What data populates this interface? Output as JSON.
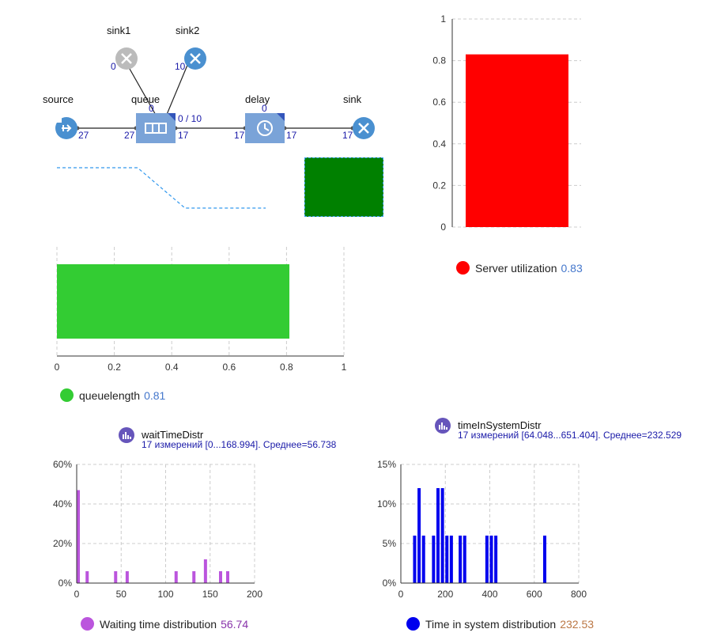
{
  "diagram": {
    "nodes": {
      "source": {
        "label": "source",
        "count_out": "27"
      },
      "queue": {
        "label": "queue",
        "count_in": "27",
        "count_out": "17",
        "count_top": "0",
        "capacity": "0 / 10"
      },
      "delay": {
        "label": "delay",
        "count_in": "17",
        "count_out": "17",
        "count_top": "0"
      },
      "sink": {
        "label": "sink",
        "count_in": "17"
      },
      "sink1": {
        "label": "sink1",
        "count": "0"
      },
      "sink2": {
        "label": "sink2",
        "count": "10"
      }
    },
    "indicator_color": "#008000"
  },
  "queue_chart": {
    "legend": "queuelength",
    "value_text": "0.81",
    "color": "#33cc33"
  },
  "server_chart": {
    "legend": "Server utilization",
    "value_text": "0.83",
    "color": "#ff0000"
  },
  "wait_stats": {
    "title": "waitTimeDistr",
    "subtitle": "17 измерений [0...168.994]. Среднее=56.738",
    "legend": "Waiting time distribution",
    "value_text": "56.74",
    "color": "#bb55dd",
    "value_color": "#8833aa"
  },
  "system_stats": {
    "title": "timeInSystemDistr",
    "subtitle": "17 измерений [64.048...651.404]. Среднее=232.529",
    "legend": "Time in system distribution",
    "value_text": "232.53",
    "color": "#0000ee",
    "value_color": "#bb7744"
  },
  "chart_data": [
    {
      "type": "bar",
      "orientation": "horizontal",
      "categories": [
        "queuelength"
      ],
      "values": [
        0.81
      ],
      "xlim": [
        0,
        1
      ],
      "xticks": [
        "0",
        "0.2",
        "0.4",
        "0.6",
        "0.8",
        "1"
      ],
      "grid": true
    },
    {
      "type": "bar",
      "orientation": "vertical",
      "categories": [
        "Server utilization"
      ],
      "values": [
        0.83
      ],
      "ylim": [
        0,
        1
      ],
      "yticks": [
        "0",
        "0.2",
        "0.4",
        "0.6",
        "0.8",
        "1"
      ],
      "grid": true
    },
    {
      "type": "bar",
      "histogram": true,
      "x": [
        0,
        10,
        42,
        55,
        110,
        130,
        143,
        160,
        168
      ],
      "values": [
        47,
        6,
        6,
        6,
        6,
        6,
        12,
        6,
        6
      ],
      "xlim": [
        0,
        200
      ],
      "ylim": [
        0,
        60
      ],
      "xticks": [
        "0",
        "50",
        "100",
        "150",
        "200"
      ],
      "yticks": [
        "0%",
        "20%",
        "40%",
        "60%"
      ],
      "grid": true
    },
    {
      "type": "bar",
      "histogram": true,
      "x": [
        55,
        75,
        95,
        140,
        160,
        180,
        200,
        220,
        260,
        280,
        380,
        400,
        420,
        640
      ],
      "values": [
        6,
        12,
        6,
        6,
        12,
        12,
        6,
        6,
        6,
        6,
        6,
        6,
        6,
        6
      ],
      "xlim": [
        0,
        800
      ],
      "ylim": [
        0,
        15
      ],
      "xticks": [
        "0",
        "200",
        "400",
        "600",
        "800"
      ],
      "yticks": [
        "0%",
        "5%",
        "10%",
        "15%"
      ],
      "grid": true
    }
  ]
}
